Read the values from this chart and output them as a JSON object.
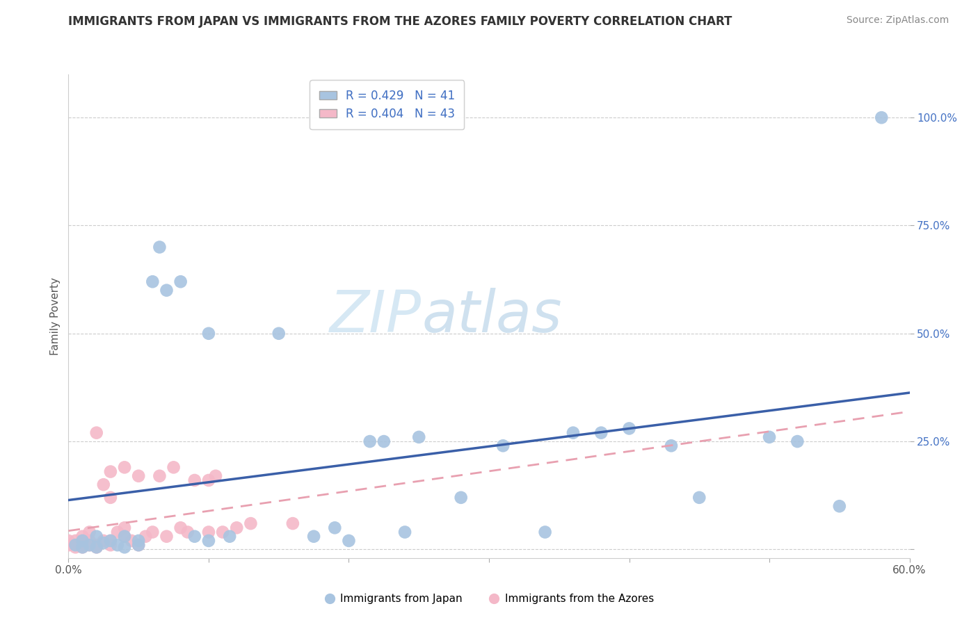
{
  "title": "IMMIGRANTS FROM JAPAN VS IMMIGRANTS FROM THE AZORES FAMILY POVERTY CORRELATION CHART",
  "source": "Source: ZipAtlas.com",
  "ylabel": "Family Poverty",
  "xlim": [
    0.0,
    0.6
  ],
  "ylim": [
    -0.02,
    1.1
  ],
  "R_japan": 0.429,
  "N_japan": 41,
  "R_azores": 0.404,
  "N_azores": 43,
  "japan_color": "#a8c4e0",
  "azores_color": "#f4b8c8",
  "japan_line_color": "#3a5fa8",
  "azores_line_color": "#e8a0b0",
  "watermark_zip": "ZIP",
  "watermark_atlas": "atlas",
  "legend_japan": "Immigrants from Japan",
  "legend_azores": "Immigrants from the Azores",
  "japan_scatter_x": [
    0.005,
    0.01,
    0.01,
    0.015,
    0.02,
    0.02,
    0.025,
    0.03,
    0.035,
    0.04,
    0.04,
    0.05,
    0.05,
    0.06,
    0.065,
    0.07,
    0.08,
    0.09,
    0.1,
    0.1,
    0.115,
    0.15,
    0.175,
    0.19,
    0.2,
    0.215,
    0.225,
    0.24,
    0.25,
    0.28,
    0.31,
    0.34,
    0.36,
    0.38,
    0.4,
    0.43,
    0.45,
    0.5,
    0.52,
    0.55,
    0.58
  ],
  "japan_scatter_y": [
    0.01,
    0.005,
    0.02,
    0.01,
    0.005,
    0.03,
    0.015,
    0.02,
    0.01,
    0.005,
    0.03,
    0.02,
    0.01,
    0.62,
    0.7,
    0.6,
    0.62,
    0.03,
    0.02,
    0.5,
    0.03,
    0.5,
    0.03,
    0.05,
    0.02,
    0.25,
    0.25,
    0.04,
    0.26,
    0.12,
    0.24,
    0.04,
    0.27,
    0.27,
    0.28,
    0.24,
    0.12,
    0.26,
    0.25,
    0.1,
    1.0
  ],
  "azores_scatter_x": [
    0.0,
    0.0,
    0.005,
    0.005,
    0.008,
    0.01,
    0.01,
    0.01,
    0.01,
    0.015,
    0.015,
    0.015,
    0.02,
    0.02,
    0.02,
    0.025,
    0.025,
    0.03,
    0.03,
    0.03,
    0.03,
    0.035,
    0.04,
    0.04,
    0.04,
    0.045,
    0.05,
    0.05,
    0.055,
    0.06,
    0.065,
    0.07,
    0.075,
    0.08,
    0.085,
    0.09,
    0.1,
    0.1,
    0.105,
    0.11,
    0.12,
    0.13,
    0.16
  ],
  "azores_scatter_y": [
    0.01,
    0.02,
    0.005,
    0.02,
    0.01,
    0.005,
    0.01,
    0.02,
    0.03,
    0.01,
    0.02,
    0.04,
    0.005,
    0.01,
    0.27,
    0.02,
    0.15,
    0.01,
    0.02,
    0.12,
    0.18,
    0.04,
    0.03,
    0.05,
    0.19,
    0.02,
    0.01,
    0.17,
    0.03,
    0.04,
    0.17,
    0.03,
    0.19,
    0.05,
    0.04,
    0.16,
    0.04,
    0.16,
    0.17,
    0.04,
    0.05,
    0.06,
    0.06
  ]
}
